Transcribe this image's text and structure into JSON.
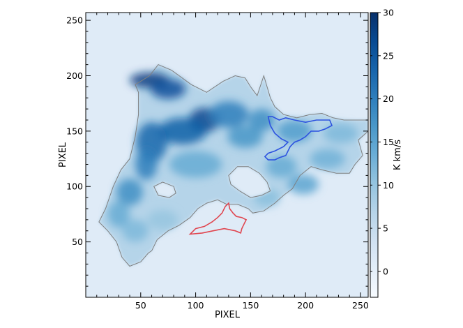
{
  "chart_data": {
    "type": "heatmap",
    "title": "",
    "xlabel": "PIXEL",
    "ylabel": "PIXEL",
    "xlim": [
      0,
      257
    ],
    "ylim": [
      0,
      257
    ],
    "xticks": [
      50,
      100,
      150,
      200,
      250
    ],
    "yticks": [
      50,
      100,
      150,
      200,
      250
    ],
    "colorbar": {
      "label": "K km/s",
      "range": [
        -3,
        30
      ],
      "ticks": [
        0,
        5,
        10,
        15,
        20,
        25,
        30
      ],
      "colormap": "Blues",
      "low_color": "#f7fbff",
      "high_color": "#08306b"
    },
    "emission_region": {
      "outline_color": "#7f7f7f",
      "boundary": [
        [
          12,
          68
        ],
        [
          18,
          80
        ],
        [
          25,
          100
        ],
        [
          32,
          115
        ],
        [
          40,
          125
        ],
        [
          45,
          145
        ],
        [
          48,
          165
        ],
        [
          48,
          185
        ],
        [
          45,
          192
        ],
        [
          50,
          195
        ],
        [
          58,
          200
        ],
        [
          66,
          210
        ],
        [
          78,
          205
        ],
        [
          85,
          200
        ],
        [
          96,
          192
        ],
        [
          110,
          185
        ],
        [
          125,
          195
        ],
        [
          136,
          200
        ],
        [
          145,
          198
        ],
        [
          150,
          190
        ],
        [
          156,
          182
        ],
        [
          162,
          200
        ],
        [
          168,
          180
        ],
        [
          172,
          172
        ],
        [
          180,
          165
        ],
        [
          192,
          162
        ],
        [
          204,
          165
        ],
        [
          215,
          166
        ],
        [
          225,
          162
        ],
        [
          235,
          160
        ],
        [
          245,
          160
        ],
        [
          257,
          160
        ],
        [
          257,
          150
        ],
        [
          248,
          142
        ],
        [
          252,
          128
        ],
        [
          245,
          120
        ],
        [
          240,
          112
        ],
        [
          228,
          112
        ],
        [
          215,
          115
        ],
        [
          205,
          118
        ],
        [
          195,
          110
        ],
        [
          188,
          98
        ],
        [
          180,
          92
        ],
        [
          172,
          85
        ],
        [
          162,
          78
        ],
        [
          152,
          76
        ],
        [
          148,
          80
        ],
        [
          138,
          84
        ],
        [
          128,
          84
        ],
        [
          120,
          88
        ],
        [
          110,
          85
        ],
        [
          102,
          80
        ],
        [
          95,
          72
        ],
        [
          85,
          65
        ],
        [
          75,
          60
        ],
        [
          65,
          52
        ],
        [
          60,
          42
        ],
        [
          57,
          40
        ],
        [
          50,
          32
        ],
        [
          40,
          28
        ],
        [
          33,
          36
        ],
        [
          28,
          50
        ],
        [
          20,
          60
        ]
      ],
      "holes": [
        [
          [
            130,
            110
          ],
          [
            138,
            118
          ],
          [
            148,
            118
          ],
          [
            158,
            112
          ],
          [
            165,
            104
          ],
          [
            168,
            96
          ],
          [
            160,
            92
          ],
          [
            150,
            90
          ],
          [
            140,
            96
          ],
          [
            132,
            102
          ]
        ],
        [
          [
            62,
            100
          ],
          [
            70,
            104
          ],
          [
            80,
            100
          ],
          [
            82,
            94
          ],
          [
            76,
            90
          ],
          [
            66,
            92
          ]
        ]
      ]
    },
    "bright_clumps": [
      {
        "x": 58,
        "y": 196,
        "rx": 18,
        "ry": 7,
        "value": 28
      },
      {
        "x": 75,
        "y": 188,
        "rx": 16,
        "ry": 9,
        "value": 26
      },
      {
        "x": 108,
        "y": 160,
        "rx": 14,
        "ry": 11,
        "value": 27
      },
      {
        "x": 88,
        "y": 150,
        "rx": 22,
        "ry": 12,
        "value": 24
      },
      {
        "x": 60,
        "y": 140,
        "rx": 14,
        "ry": 18,
        "value": 23
      },
      {
        "x": 55,
        "y": 120,
        "rx": 10,
        "ry": 14,
        "value": 20
      },
      {
        "x": 40,
        "y": 95,
        "rx": 12,
        "ry": 12,
        "value": 18
      },
      {
        "x": 130,
        "y": 165,
        "rx": 18,
        "ry": 12,
        "value": 20
      },
      {
        "x": 145,
        "y": 145,
        "rx": 16,
        "ry": 10,
        "value": 17
      },
      {
        "x": 160,
        "y": 160,
        "rx": 12,
        "ry": 10,
        "value": 18
      },
      {
        "x": 190,
        "y": 150,
        "rx": 16,
        "ry": 10,
        "value": 16
      },
      {
        "x": 178,
        "y": 118,
        "rx": 14,
        "ry": 10,
        "value": 14
      },
      {
        "x": 198,
        "y": 102,
        "rx": 14,
        "ry": 9,
        "value": 15
      },
      {
        "x": 220,
        "y": 125,
        "rx": 16,
        "ry": 9,
        "value": 13
      },
      {
        "x": 232,
        "y": 148,
        "rx": 16,
        "ry": 9,
        "value": 12
      },
      {
        "x": 30,
        "y": 75,
        "rx": 10,
        "ry": 12,
        "value": 14
      },
      {
        "x": 45,
        "y": 60,
        "rx": 12,
        "ry": 10,
        "value": 12
      },
      {
        "x": 70,
        "y": 70,
        "rx": 14,
        "ry": 9,
        "value": 10
      },
      {
        "x": 100,
        "y": 120,
        "rx": 24,
        "ry": 12,
        "value": 14
      },
      {
        "x": 165,
        "y": 90,
        "rx": 12,
        "ry": 8,
        "value": 11
      }
    ],
    "red_contour": {
      "color": "#e0454f",
      "points": [
        [
          95,
          57
        ],
        [
          100,
          62
        ],
        [
          108,
          64
        ],
        [
          115,
          68
        ],
        [
          120,
          72
        ],
        [
          124,
          76
        ],
        [
          127,
          82
        ],
        [
          130,
          85
        ],
        [
          131,
          80
        ],
        [
          134,
          76
        ],
        [
          137,
          73
        ],
        [
          142,
          72
        ],
        [
          146,
          70
        ],
        [
          144,
          66
        ],
        [
          142,
          62
        ],
        [
          141,
          58
        ],
        [
          136,
          60
        ],
        [
          126,
          62
        ],
        [
          116,
          60
        ],
        [
          106,
          58
        ]
      ]
    },
    "blue_contour": {
      "color": "#2c52e0",
      "points": [
        [
          163,
          127
        ],
        [
          166,
          130
        ],
        [
          172,
          132
        ],
        [
          180,
          136
        ],
        [
          184,
          140
        ],
        [
          178,
          143
        ],
        [
          172,
          148
        ],
        [
          168,
          155
        ],
        [
          166,
          163
        ],
        [
          170,
          163
        ],
        [
          176,
          160
        ],
        [
          182,
          162
        ],
        [
          190,
          160
        ],
        [
          200,
          158
        ],
        [
          210,
          160
        ],
        [
          222,
          160
        ],
        [
          224,
          155
        ],
        [
          218,
          152
        ],
        [
          212,
          150
        ],
        [
          205,
          150
        ],
        [
          200,
          145
        ],
        [
          195,
          142
        ],
        [
          190,
          140
        ],
        [
          186,
          136
        ],
        [
          182,
          128
        ],
        [
          176,
          126
        ],
        [
          172,
          124
        ],
        [
          166,
          124
        ]
      ]
    }
  }
}
